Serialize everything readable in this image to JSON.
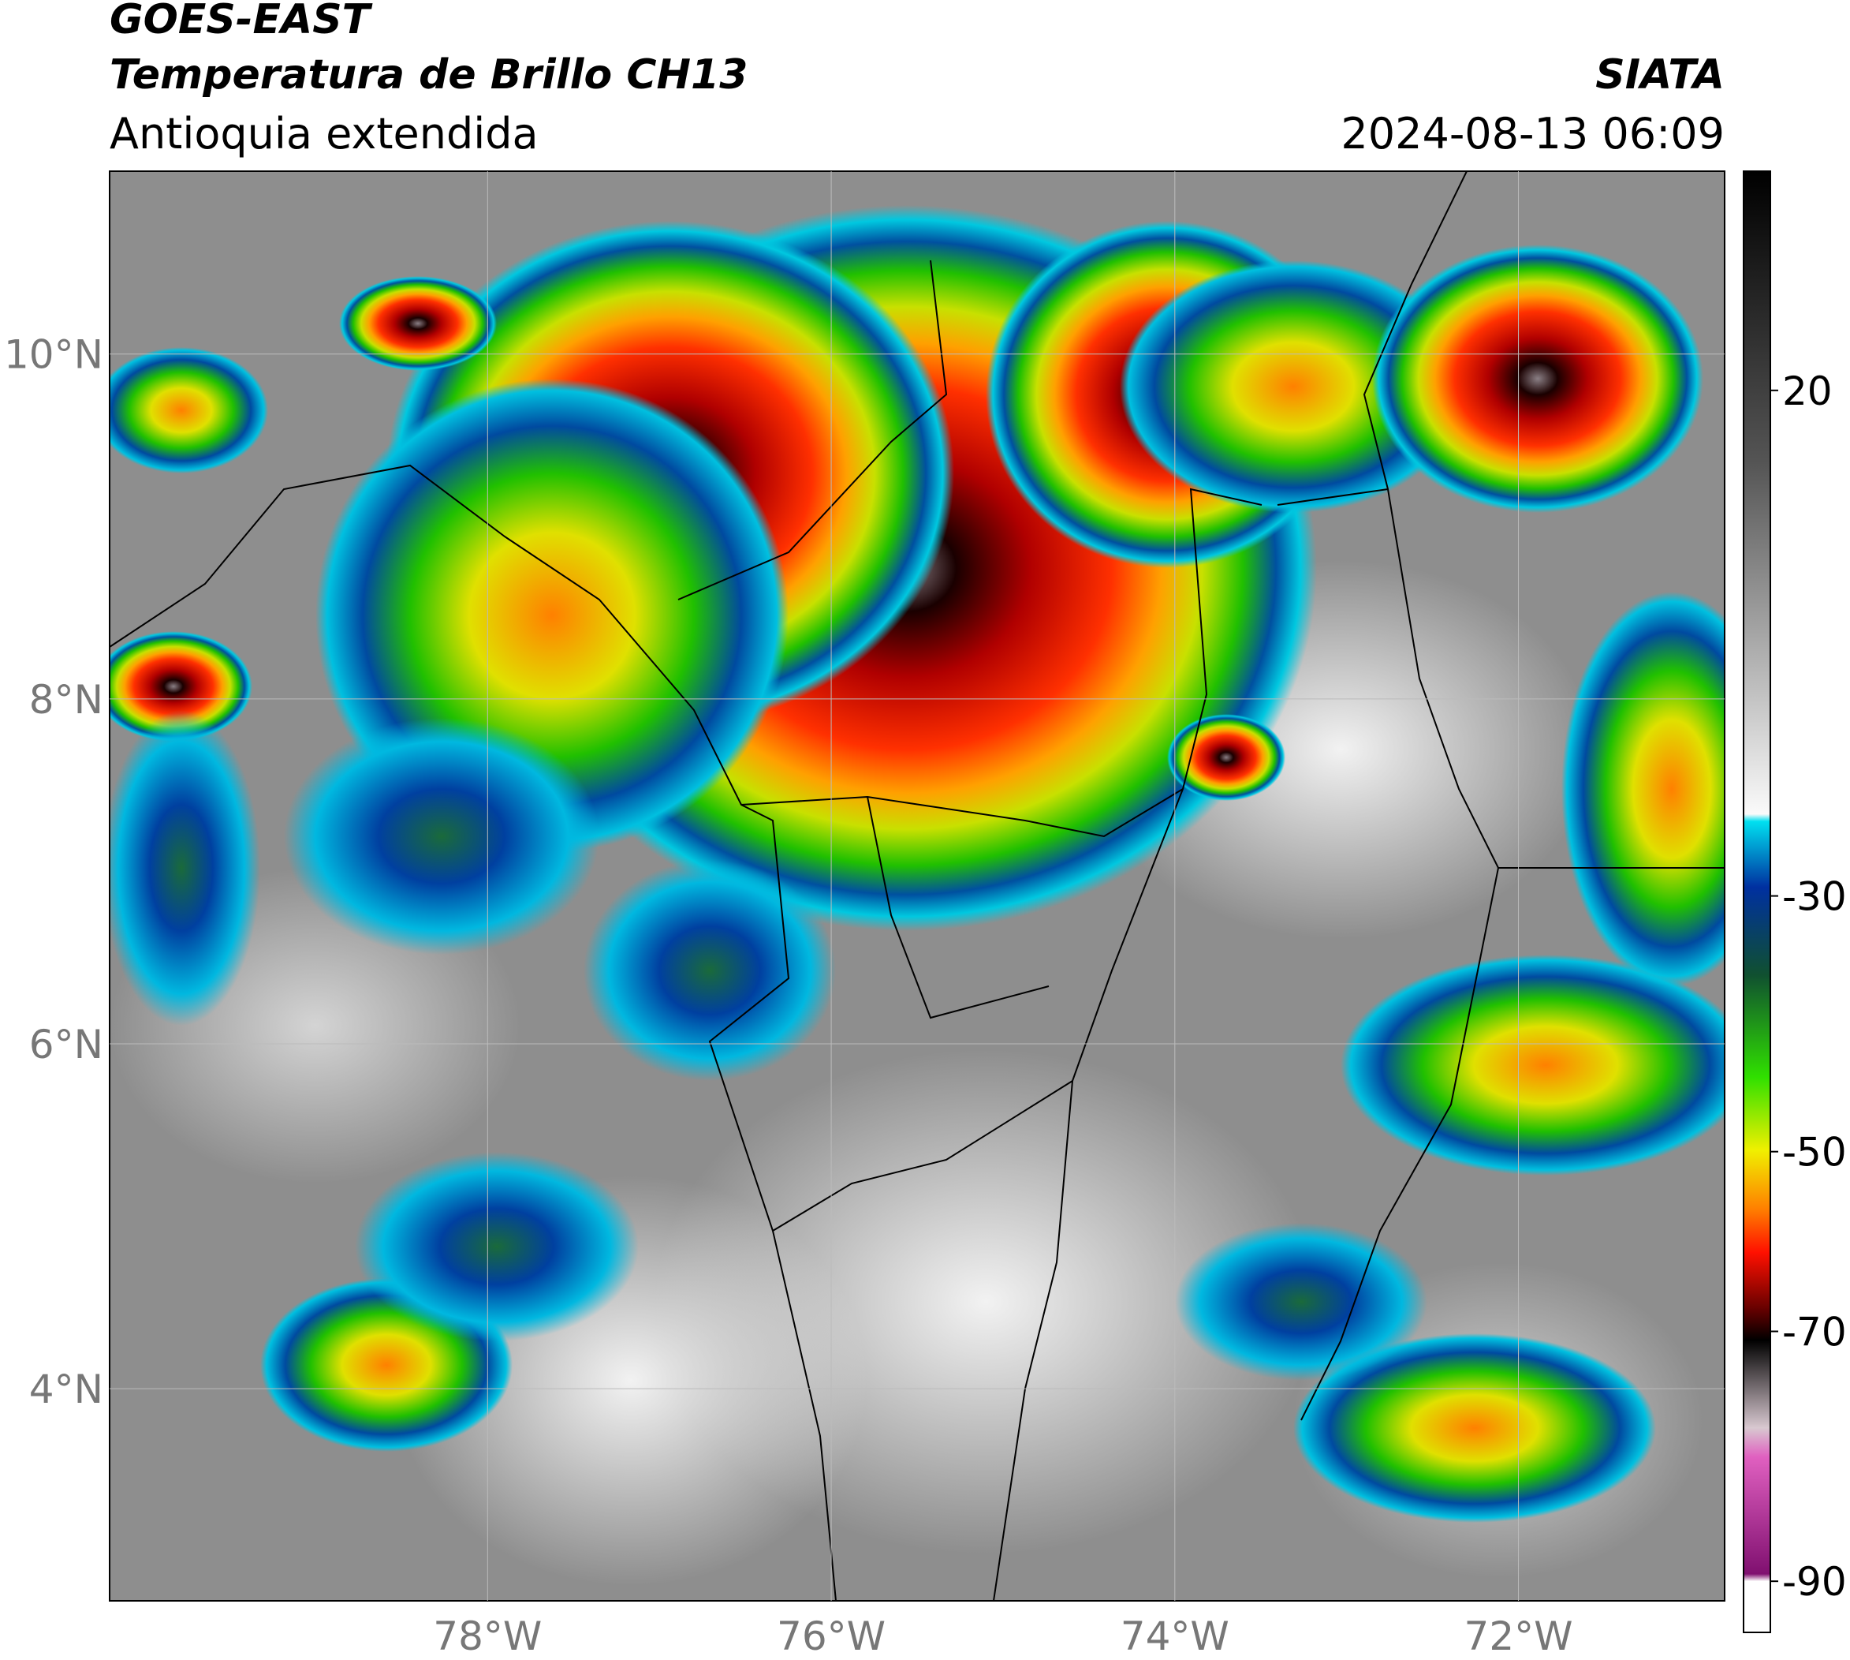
{
  "header": {
    "satellite": "GOES-EAST",
    "product": "Temperatura de Brillo CH13",
    "region": "Antioquia extendida",
    "agency": "SIATA",
    "datetime": "2024-08-13 06:09"
  },
  "map": {
    "xlim": [
      -80.2,
      -70.8
    ],
    "ylim": [
      2.77,
      11.06
    ],
    "xticks": [
      {
        "value": -78,
        "label": "78°W"
      },
      {
        "value": -76,
        "label": "76°W"
      },
      {
        "value": -74,
        "label": "74°W"
      },
      {
        "value": -72,
        "label": "72°W"
      }
    ],
    "yticks": [
      {
        "value": 4,
        "label": "4°N"
      },
      {
        "value": 6,
        "label": "6°N"
      },
      {
        "value": 8,
        "label": "8°N"
      },
      {
        "value": 10,
        "label": "10°N"
      }
    ],
    "grid": true
  },
  "colorbar": {
    "ticks": [
      20,
      -30,
      -50,
      -70,
      -90
    ]
  }
}
